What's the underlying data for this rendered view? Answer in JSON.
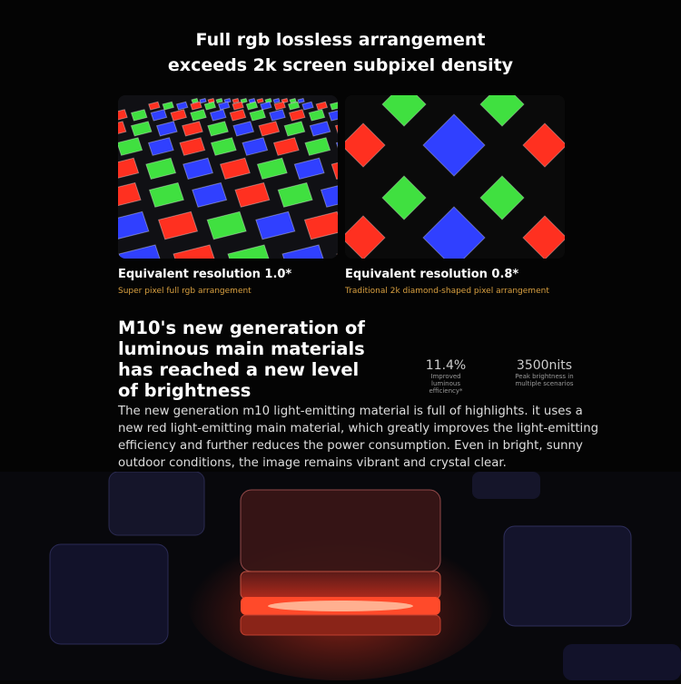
{
  "title": {
    "line1": "Full rgb lossless arrangement",
    "line2": "exceeds 2k screen subpixel density"
  },
  "comparison": [
    {
      "caption": "Equivalent resolution 1.0*",
      "subcaption": "Super pixel full rgb arrangement"
    },
    {
      "caption": "Equivalent resolution 0.8*",
      "subcaption": "Traditional 2k diamond-shaped pixel arrangement"
    }
  ],
  "feature": {
    "heading": "M10's new generation of luminous main materials has reached a new level of brightness",
    "stats": [
      {
        "value": "11.4%",
        "label": "Improved luminous efficiency*"
      },
      {
        "value": "3500nits",
        "label": "Peak brightness in multiple scenarios"
      }
    ],
    "body": "The new generation m10 light-emitting material is full of highlights. it uses a new red light-emitting main material, which greatly improves the light-emitting efficiency and further reduces the power consumption. Even in bright, sunny outdoor conditions, the image remains vibrant and crystal clear."
  },
  "colors": {
    "accent": "#d9a040",
    "red": "#ff3020",
    "green": "#40e040",
    "blue": "#3040ff"
  }
}
